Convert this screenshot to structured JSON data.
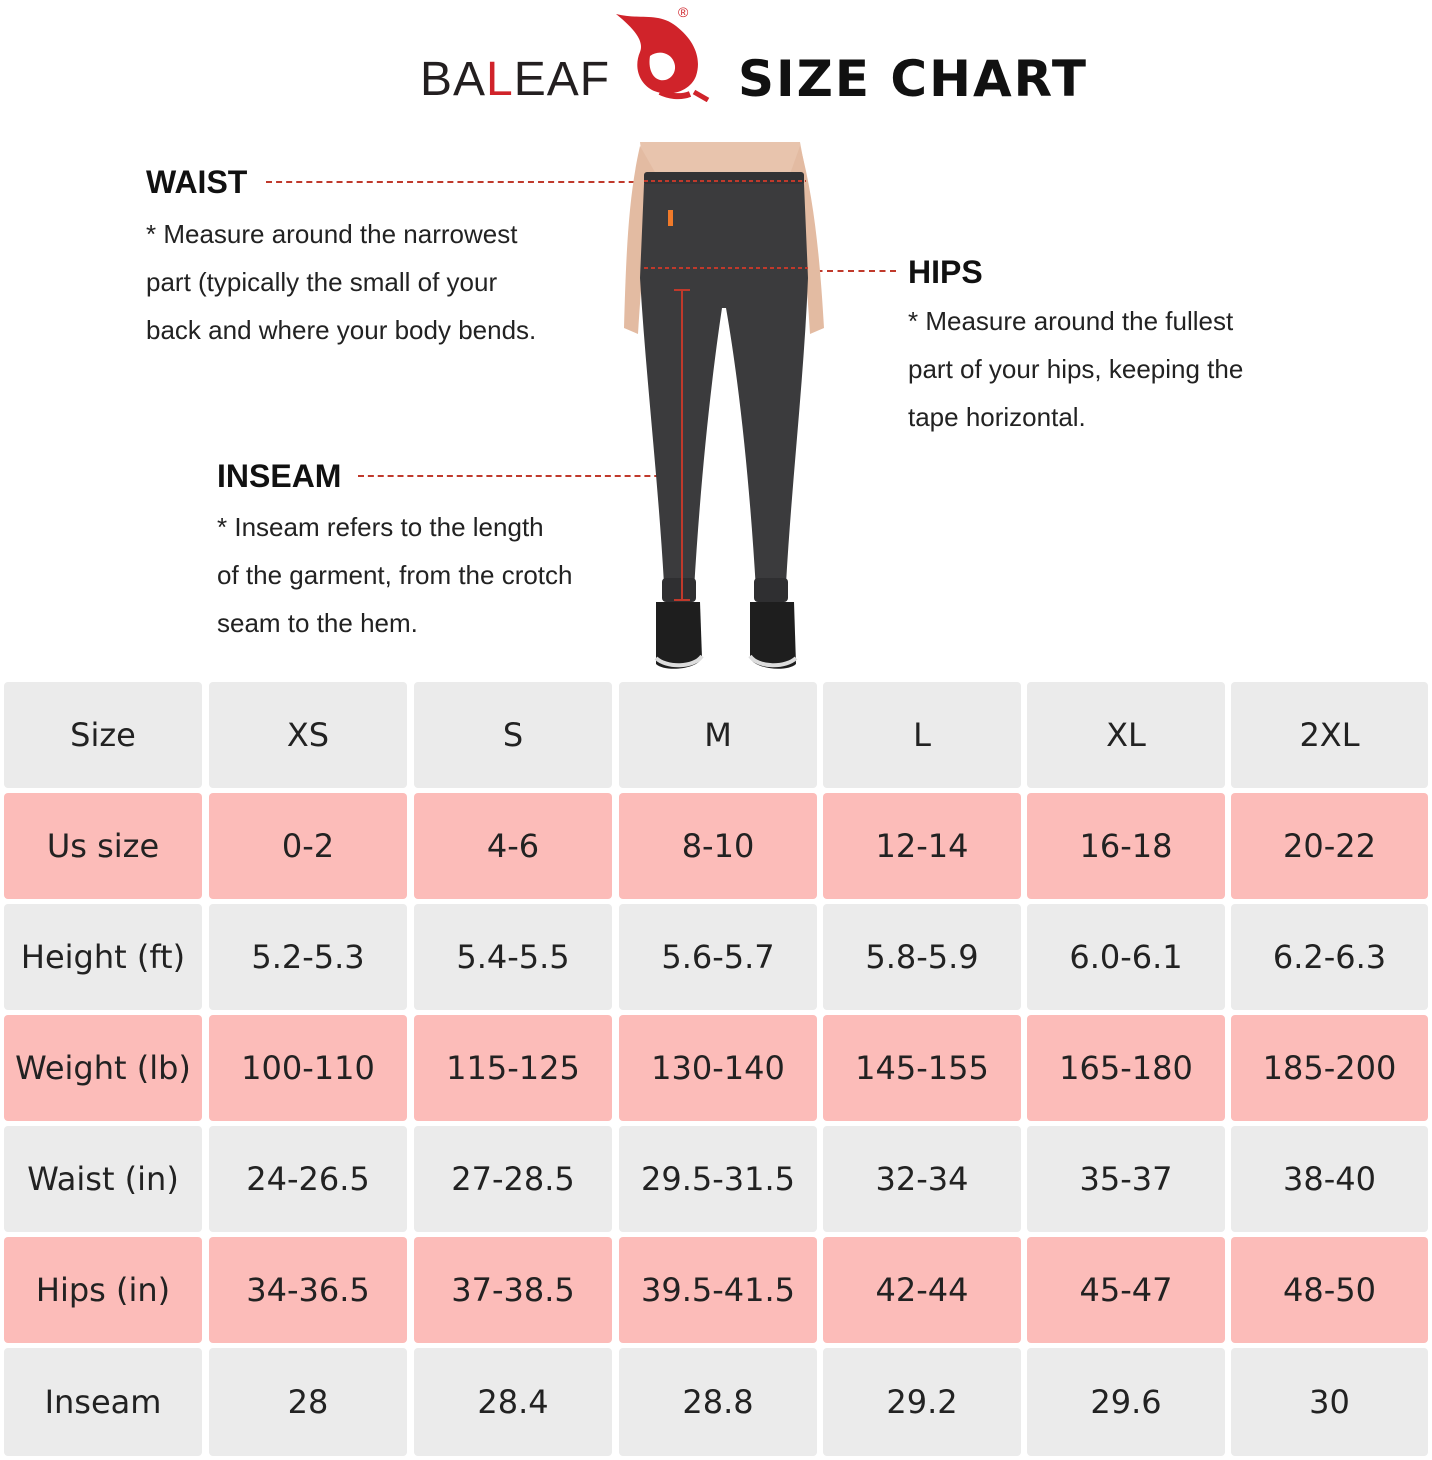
{
  "header": {
    "brand_prefix": "BA",
    "brand_mid": "L",
    "brand_suffix": "EAF",
    "registered": "®",
    "title": "SIZE  CHART"
  },
  "annotations": {
    "waist": {
      "label": "WAIST",
      "lines": [
        "* Measure around the narrowest",
        "part (typically the small of your",
        "back and where your body bends."
      ]
    },
    "hips": {
      "label": "HIPS",
      "lines": [
        "* Measure around the fullest",
        "part of your hips, keeping the",
        "tape horizontal."
      ]
    },
    "inseam": {
      "label": "INSEAM",
      "lines": [
        "* Inseam refers to the length",
        "of the garment, from the crotch",
        "seam to the hem."
      ]
    }
  },
  "colors": {
    "accent": "#d0232a",
    "row_gray": "#ebebeb",
    "row_pink": "#fcbcb9",
    "pants": "#3b3b3d"
  },
  "table": {
    "columns": [
      "Size",
      "XS",
      "S",
      "M",
      "L",
      "XL",
      "2XL"
    ],
    "rows": [
      [
        "Us size",
        "0-2",
        "4-6",
        "8-10",
        "12-14",
        "16-18",
        "20-22"
      ],
      [
        "Height (ft)",
        "5.2-5.3",
        "5.4-5.5",
        "5.6-5.7",
        "5.8-5.9",
        "6.0-6.1",
        "6.2-6.3"
      ],
      [
        "Weight (lb)",
        "100-110",
        "115-125",
        "130-140",
        "145-155",
        "165-180",
        "185-200"
      ],
      [
        "Waist (in)",
        "24-26.5",
        "27-28.5",
        "29.5-31.5",
        "32-34",
        "35-37",
        "38-40"
      ],
      [
        "Hips (in)",
        "34-36.5",
        "37-38.5",
        "39.5-41.5",
        "42-44",
        "45-47",
        "48-50"
      ],
      [
        "Inseam",
        "28",
        "28.4",
        "28.8",
        "29.2",
        "29.6",
        "30"
      ]
    ]
  }
}
